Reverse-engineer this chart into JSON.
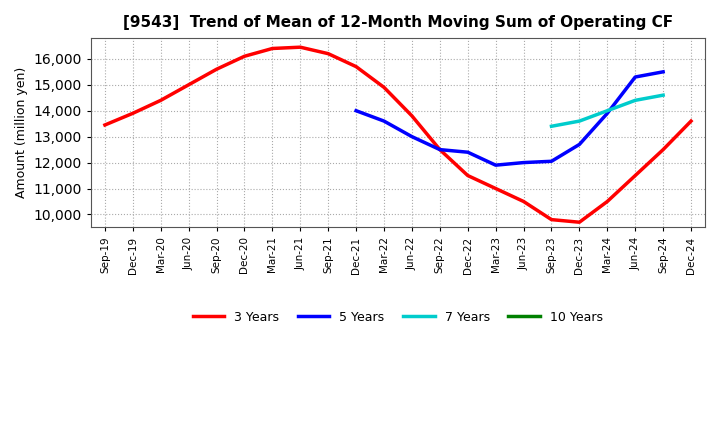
{
  "title": "[9543]  Trend of Mean of 12-Month Moving Sum of Operating CF",
  "ylabel": "Amount (million yen)",
  "ylim": [
    9500,
    16800
  ],
  "yticks": [
    10000,
    11000,
    12000,
    13000,
    14000,
    15000,
    16000
  ],
  "background_color": "#ffffff",
  "grid_color": "#aaaaaa",
  "x_labels": [
    "Sep-19",
    "Dec-19",
    "Mar-20",
    "Jun-20",
    "Sep-20",
    "Dec-20",
    "Mar-21",
    "Jun-21",
    "Sep-21",
    "Dec-21",
    "Mar-22",
    "Jun-22",
    "Sep-22",
    "Dec-22",
    "Mar-23",
    "Jun-23",
    "Sep-23",
    "Dec-23",
    "Mar-24",
    "Jun-24",
    "Sep-24",
    "Dec-24"
  ],
  "series": {
    "3 Years": {
      "color": "#ff0000",
      "data_x": [
        0,
        1,
        2,
        3,
        4,
        5,
        6,
        7,
        8,
        9,
        10,
        11,
        12,
        13,
        14,
        15,
        16,
        17,
        18,
        19,
        20,
        21
      ],
      "data_y": [
        13450,
        13900,
        14400,
        15000,
        15600,
        16100,
        16400,
        16450,
        16200,
        15700,
        14900,
        13800,
        12500,
        11500,
        11000,
        10500,
        9800,
        9700,
        10500,
        11500,
        12500,
        13600
      ]
    },
    "5 Years": {
      "color": "#0000ff",
      "data_x": [
        9,
        10,
        11,
        12,
        13,
        14,
        15,
        16,
        17,
        18,
        19,
        20
      ],
      "data_y": [
        14000,
        13600,
        13000,
        12500,
        12400,
        11900,
        12000,
        12050,
        12700,
        13900,
        15300,
        15500
      ]
    },
    "7 Years": {
      "color": "#00cccc",
      "data_x": [
        16,
        17,
        18,
        19,
        20
      ],
      "data_y": [
        13400,
        13600,
        14000,
        14400,
        14600
      ]
    },
    "10 Years": {
      "color": "#008000",
      "data_x": [],
      "data_y": []
    }
  },
  "legend_labels": [
    "3 Years",
    "5 Years",
    "7 Years",
    "10 Years"
  ],
  "legend_colors": [
    "#ff0000",
    "#0000ff",
    "#00cccc",
    "#008000"
  ]
}
